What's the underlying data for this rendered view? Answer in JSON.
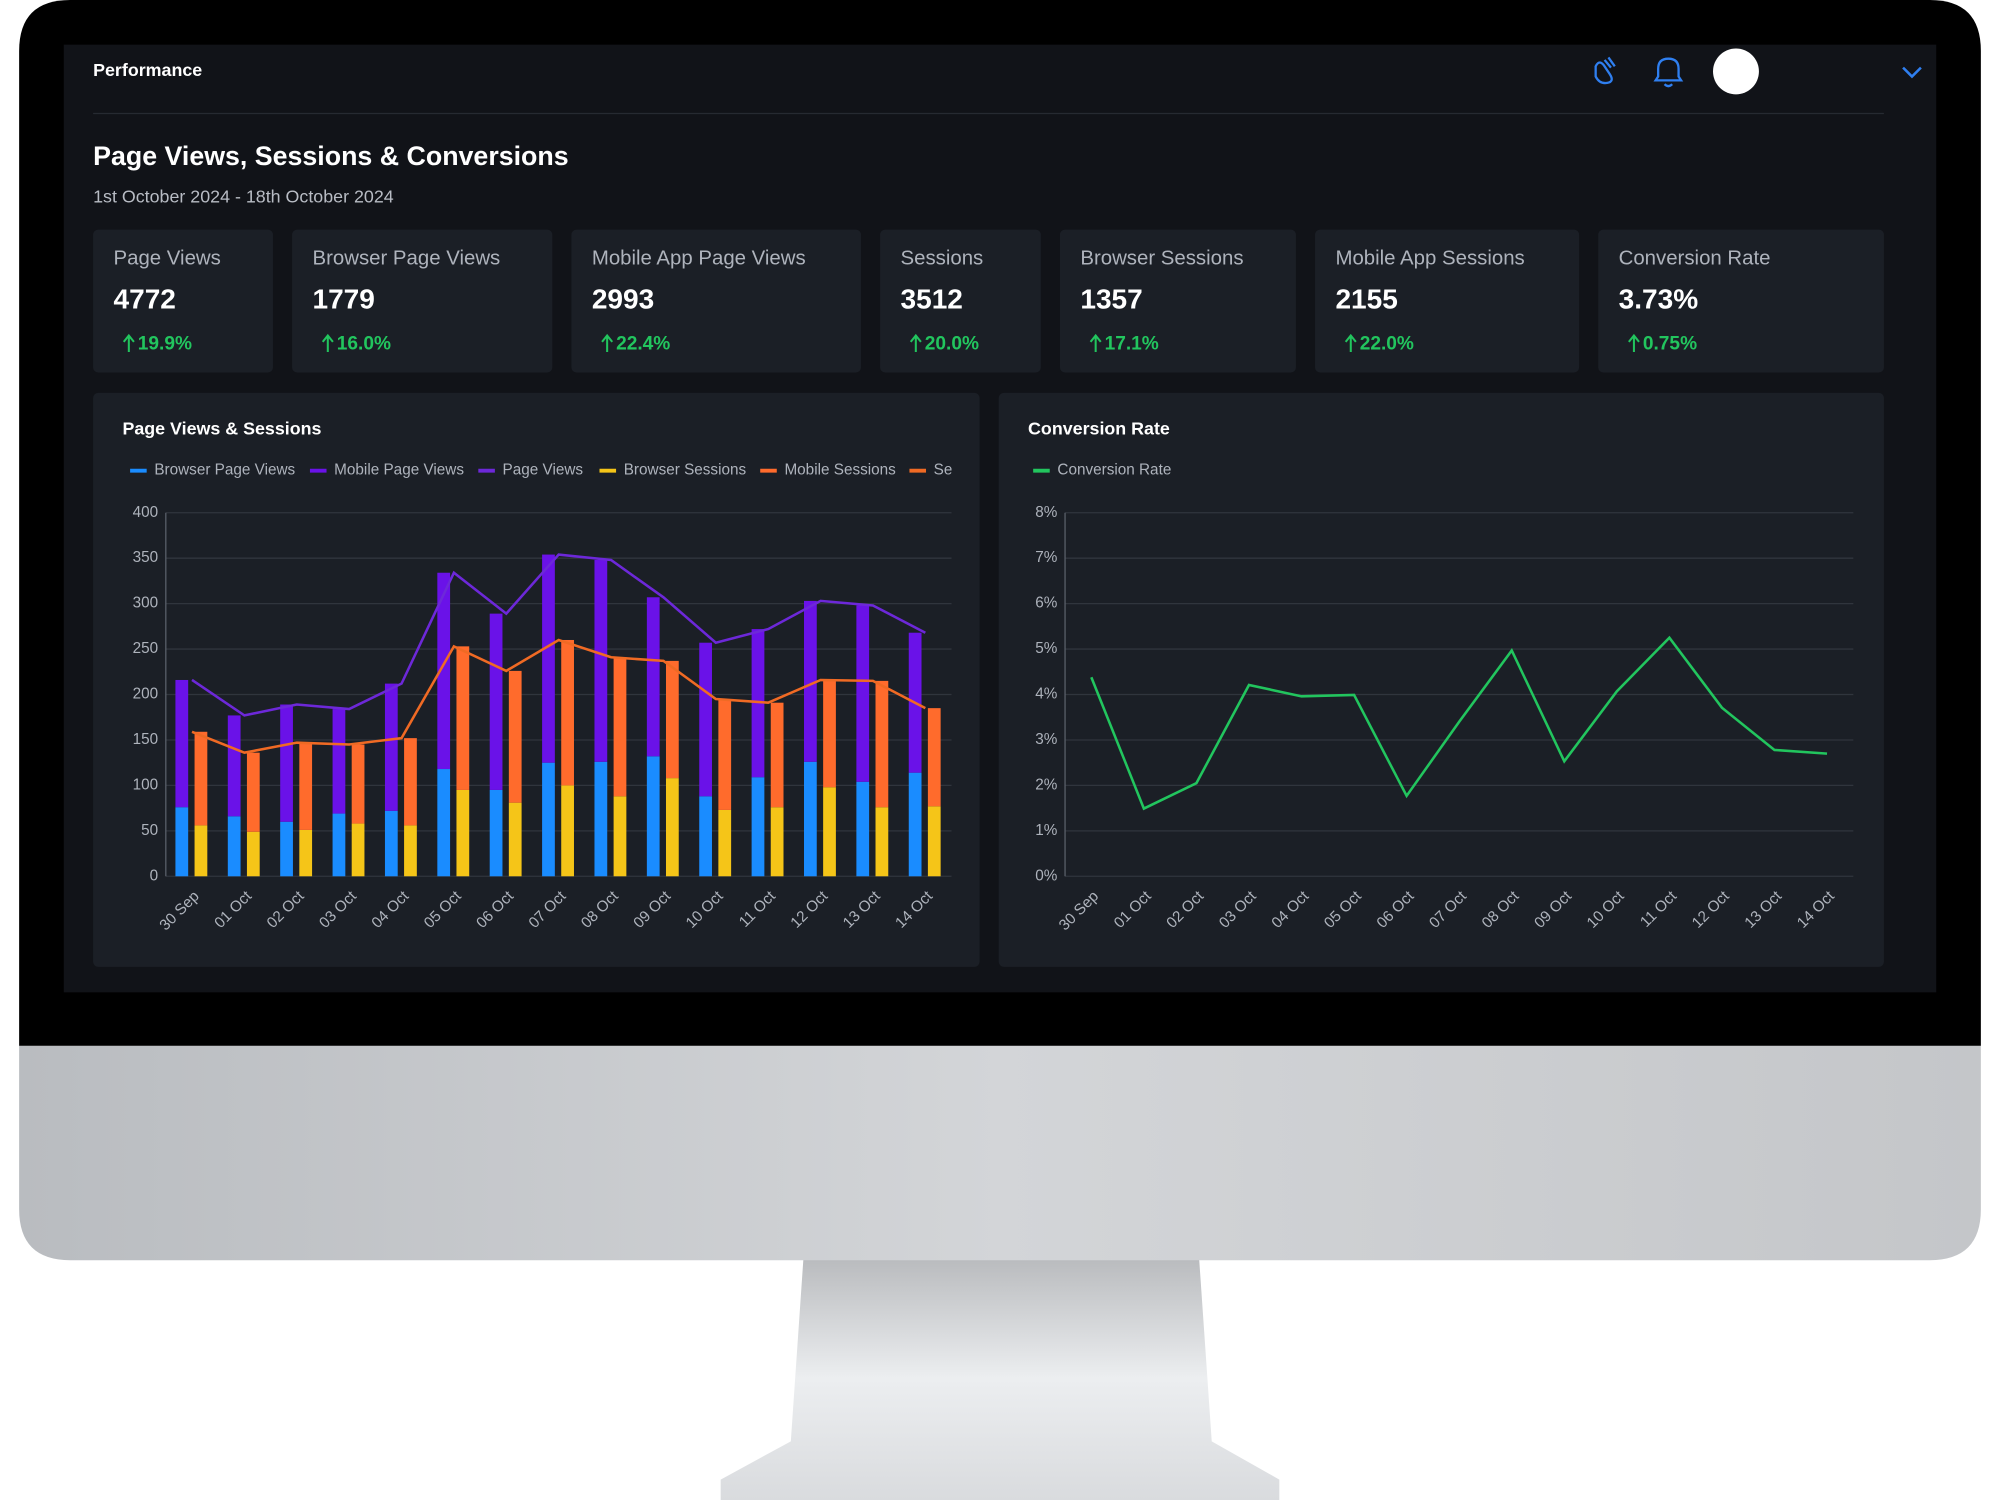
{
  "header": {
    "title": "Performance"
  },
  "section": {
    "title": "Page Views, Sessions & Conversions",
    "date_range": "1st October 2024 - 18th October 2024"
  },
  "kpis": [
    {
      "label": "Page Views",
      "value": "4772",
      "change": "19.9%"
    },
    {
      "label": "Browser Page Views",
      "value": "1779",
      "change": "16.0%"
    },
    {
      "label": "Mobile App Page Views",
      "value": "2993",
      "change": "22.4%"
    },
    {
      "label": "Sessions",
      "value": "3512",
      "change": "20.0%"
    },
    {
      "label": "Browser Sessions",
      "value": "1357",
      "change": "17.1%"
    },
    {
      "label": "Mobile App Sessions",
      "value": "2155",
      "change": "22.0%"
    },
    {
      "label": "Conversion Rate",
      "value": "3.73%",
      "change": "0.75%"
    }
  ],
  "chart_data": [
    {
      "type": "bar",
      "title": "Page Views & Sessions",
      "categories": [
        "30 Sep",
        "01 Oct",
        "02 Oct",
        "03 Oct",
        "04 Oct",
        "05 Oct",
        "06 Oct",
        "07 Oct",
        "08 Oct",
        "09 Oct",
        "10 Oct",
        "11 Oct",
        "12 Oct",
        "13 Oct",
        "14 Oct"
      ],
      "series": [
        {
          "name": "Browser Page Views",
          "color": "#1a8cff",
          "kind": "bar",
          "values": [
            76,
            66,
            60,
            69,
            72,
            118,
            95,
            125,
            126,
            132,
            88,
            109,
            126,
            104,
            114
          ]
        },
        {
          "name": "Mobile Page Views",
          "color": "#6a12e8",
          "kind": "bar",
          "values": [
            140,
            111,
            129,
            115,
            140,
            216,
            194,
            229,
            222,
            175,
            169,
            163,
            177,
            194,
            154
          ]
        },
        {
          "name": "Page Views",
          "color": "#6d28d9",
          "kind": "line",
          "values": [
            216,
            177,
            189,
            184,
            212,
            334,
            289,
            354,
            348,
            307,
            257,
            272,
            303,
            298,
            268
          ]
        },
        {
          "name": "Browser Sessions",
          "color": "#f5c518",
          "kind": "bar",
          "values": [
            56,
            49,
            51,
            58,
            56,
            95,
            81,
            100,
            88,
            108,
            73,
            76,
            98,
            76,
            77
          ]
        },
        {
          "name": "Mobile Sessions",
          "color": "#ff6b2c",
          "kind": "bar",
          "values": [
            103,
            87,
            96,
            87,
            96,
            158,
            145,
            160,
            153,
            129,
            122,
            115,
            118,
            139,
            108
          ]
        },
        {
          "name": "Sessions",
          "color": "#f06a24",
          "kind": "line",
          "values": [
            159,
            136,
            147,
            145,
            152,
            253,
            226,
            260,
            241,
            237,
            195,
            191,
            216,
            215,
            185
          ]
        }
      ],
      "ylim": [
        0,
        400
      ],
      "yticks": [
        0,
        50,
        100,
        150,
        200,
        250,
        300,
        350,
        400
      ],
      "grid": true
    },
    {
      "type": "line",
      "title": "Conversion Rate",
      "categories": [
        "30 Sep",
        "01 Oct",
        "02 Oct",
        "03 Oct",
        "04 Oct",
        "05 Oct",
        "06 Oct",
        "07 Oct",
        "08 Oct",
        "09 Oct",
        "10 Oct",
        "11 Oct",
        "12 Oct",
        "13 Oct",
        "14 Oct"
      ],
      "series": [
        {
          "name": "Conversion Rate",
          "color": "#22c55e",
          "values": [
            4.38,
            1.49,
            2.05,
            4.21,
            3.96,
            3.99,
            1.77,
            3.4,
            4.97,
            2.53,
            4.07,
            5.25,
            3.71,
            2.78,
            2.7
          ]
        }
      ],
      "ylim": [
        0,
        8
      ],
      "yticks": [
        {
          "value": 0,
          "label": "0%"
        },
        {
          "value": 1,
          "label": "1%"
        },
        {
          "value": 2,
          "label": "2%"
        },
        {
          "value": 3,
          "label": "3%"
        },
        {
          "value": 4,
          "label": "4%"
        },
        {
          "value": 5,
          "label": "5%"
        },
        {
          "value": 6,
          "label": "6%"
        },
        {
          "value": 7,
          "label": "7%"
        },
        {
          "value": 8,
          "label": "8%"
        }
      ],
      "grid": true
    }
  ]
}
